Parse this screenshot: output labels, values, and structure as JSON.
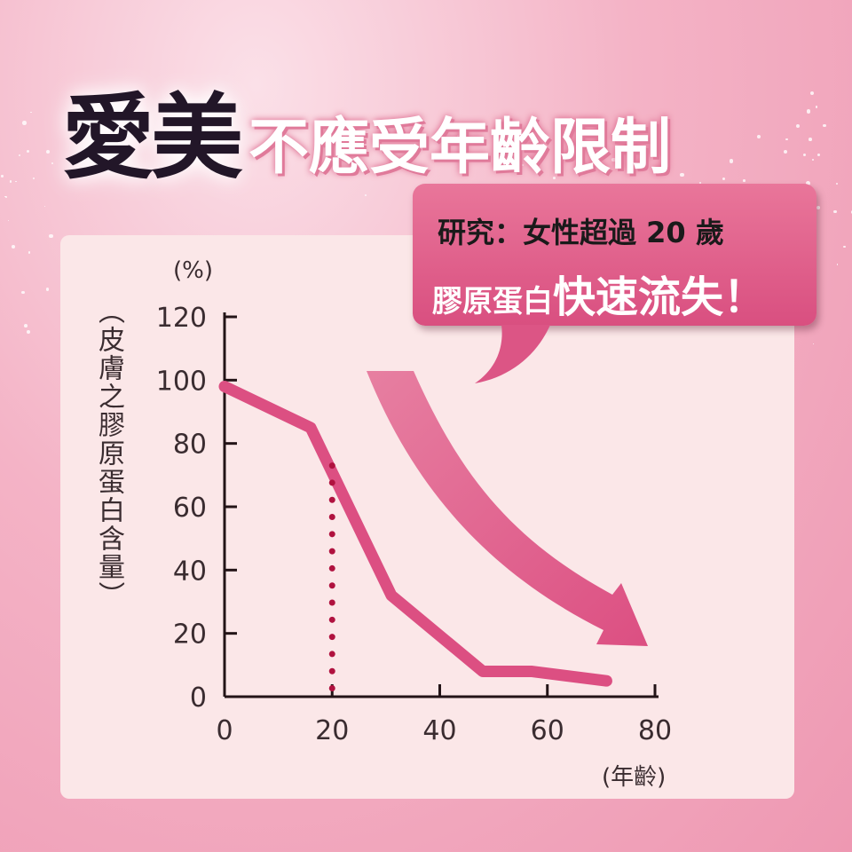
{
  "headline": {
    "emphasis": "愛美",
    "rest": "不應受年齡限制"
  },
  "callout": {
    "line1": "研究：女性超過 20 歲",
    "line2_prefix": "膠原蛋白",
    "line2_emphasis": "快速流失！"
  },
  "colors": {
    "line": "#dc4f82",
    "dotted_marker": "#b0123f",
    "panel": "#fbe7e8",
    "callout": "#dc5585"
  },
  "chart_data": {
    "type": "line",
    "title": "",
    "ylabel": "（皮膚之膠原蛋白含量）",
    "y_unit": "(%)",
    "x_unit": "(年齡)",
    "xlim": [
      0,
      80
    ],
    "ylim": [
      0,
      120
    ],
    "x_ticks": [
      "0",
      "20",
      "40",
      "60",
      "80"
    ],
    "y_ticks": [
      "0",
      "20",
      "40",
      "60",
      "80",
      "100",
      "120"
    ],
    "grid": false,
    "series": [
      {
        "x": [
          0,
          16,
          31,
          48,
          57,
          71
        ],
        "y": [
          98,
          85,
          32,
          8,
          8,
          5
        ]
      }
    ],
    "marker_line": {
      "x": 20,
      "y_top": 73,
      "style": "dotted"
    },
    "trend_arrow": "down-right"
  }
}
